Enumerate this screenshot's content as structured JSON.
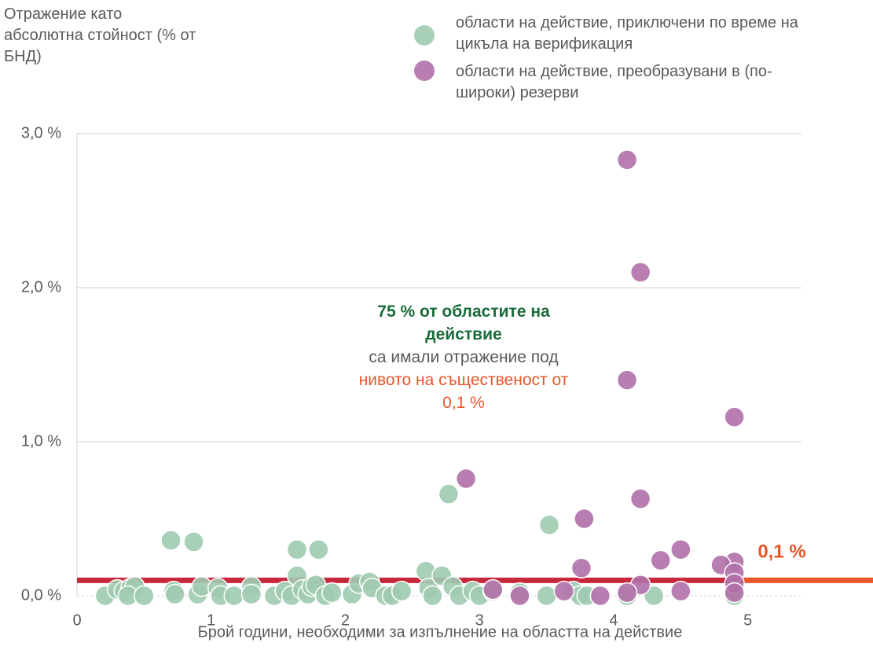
{
  "chart_data": {
    "type": "scatter",
    "ylabel": "Отражение като абсолютна стойност (% от БНД)",
    "xlabel": "Брой години, необходими за изпълнение на областта на действие",
    "annotations": [
      "75 % от областите на действие",
      "са имали отражение под",
      "нивото на същественост от 0,1 %"
    ],
    "threshold": {
      "value": 0.1,
      "label": "0,1 %"
    },
    "xlim": [
      0,
      5.4
    ],
    "xticks": [
      0,
      1,
      2,
      3,
      4,
      5
    ],
    "ylim": [
      0,
      3.0
    ],
    "yticks": [
      {
        "value": 0,
        "label": "0,0 %"
      },
      {
        "value": 1.0,
        "label": "1,0 %"
      },
      {
        "value": 2.0,
        "label": "2,0 %"
      },
      {
        "value": 3.0,
        "label": "3,0 %"
      }
    ],
    "grid": true,
    "legend": "top-right",
    "series": [
      {
        "name": "области на действие, приключени по време на цикъла на верификация",
        "color": "#9ecab0",
        "x": [
          0.21,
          0.3,
          0.35,
          0.4,
          0.43,
          0.38,
          0.5,
          0.7,
          0.87,
          0.72,
          0.73,
          0.9,
          0.93,
          1.05,
          1.07,
          1.17,
          1.3,
          1.3,
          1.47,
          1.55,
          1.6,
          1.64,
          1.64,
          1.68,
          1.72,
          1.75,
          1.78,
          1.8,
          1.85,
          1.9,
          2.05,
          2.1,
          2.18,
          2.2,
          2.3,
          2.35,
          2.42,
          2.6,
          2.62,
          2.65,
          2.72,
          2.77,
          2.8,
          2.85,
          2.95,
          3.0,
          3.1,
          3.3,
          3.52,
          3.5,
          3.7,
          3.75,
          3.8,
          4.1,
          4.3,
          4.9
        ],
        "values": [
          0,
          0.04,
          0.03,
          0.05,
          0.06,
          0,
          0,
          0.36,
          0.35,
          0.03,
          0.01,
          0.01,
          0.06,
          0.05,
          0,
          0,
          0.06,
          0.01,
          0,
          0.03,
          0,
          0.3,
          0.13,
          0.04,
          0.01,
          0.06,
          0.07,
          0.3,
          0,
          0.02,
          0.01,
          0.08,
          0.09,
          0.05,
          0,
          0,
          0.03,
          0.16,
          0.05,
          0,
          0.13,
          0.66,
          0.06,
          0,
          0.03,
          0,
          0.03,
          0.02,
          0.46,
          0,
          0.03,
          0,
          0,
          0,
          0,
          0
        ]
      },
      {
        "name": "области на действие, преобразувани в (по-широки) резерви",
        "color": "#b070a8",
        "x": [
          4.1,
          4.2,
          4.1,
          4.9,
          2.9,
          4.2,
          3.78,
          4.5,
          4.35,
          4.9,
          4.8,
          3.76,
          4.9,
          4.2,
          4.9,
          3.1,
          3.3,
          3.63,
          3.9,
          4.1,
          4.5,
          4.9
        ],
        "values": [
          2.83,
          2.1,
          1.4,
          1.16,
          0.76,
          0.63,
          0.5,
          0.3,
          0.23,
          0.22,
          0.2,
          0.18,
          0.15,
          0.07,
          0.08,
          0.04,
          0,
          0.03,
          0,
          0.02,
          0.03,
          0.02
        ]
      }
    ]
  }
}
